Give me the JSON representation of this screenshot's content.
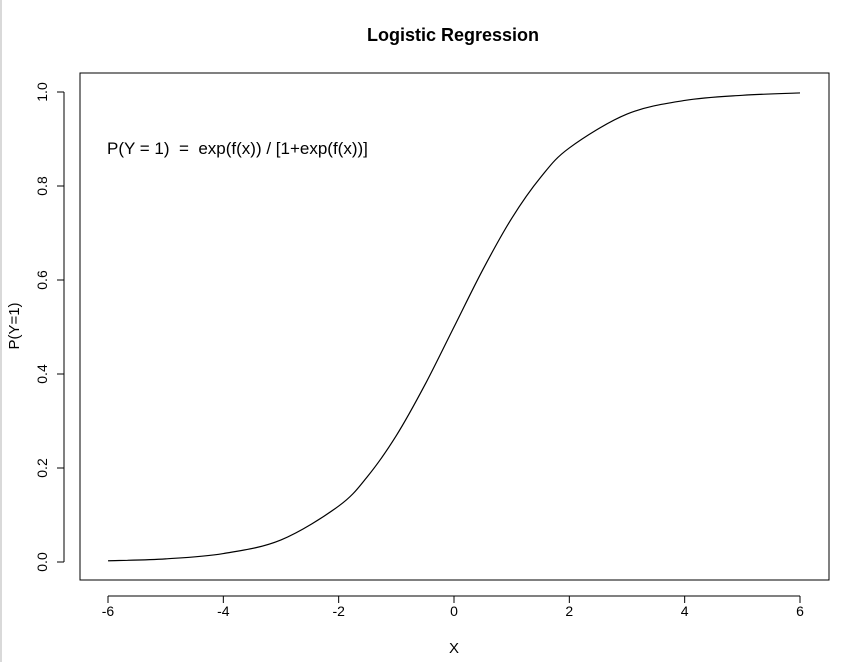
{
  "chart_data": {
    "type": "line",
    "title": "Logistic Regression",
    "xlabel": "X",
    "ylabel": "P(Y=1)",
    "xlim": [
      -6,
      6
    ],
    "ylim": [
      0,
      1
    ],
    "x_ticks": [
      -6,
      -4,
      -2,
      0,
      2,
      4,
      6
    ],
    "x_tick_labels": [
      "-6",
      "-4",
      "-2",
      "0",
      "2",
      "4",
      "6"
    ],
    "y_ticks": [
      0.0,
      0.2,
      0.4,
      0.6,
      0.8,
      1.0
    ],
    "y_tick_labels": [
      "0.0",
      "0.2",
      "0.4",
      "0.6",
      "0.8",
      "1.0"
    ],
    "grid": false,
    "annotation": "P(Y = 1)  =  exp(f(x)) / [1+exp(f(x))]",
    "series": [
      {
        "x": [
          -6,
          -5,
          -4,
          -3,
          -2,
          -1.5,
          -1,
          -0.5,
          0,
          0.5,
          1,
          1.5,
          2,
          3,
          4,
          5,
          6
        ],
        "y": [
          0.0025,
          0.0067,
          0.018,
          0.047,
          0.119,
          0.182,
          0.269,
          0.378,
          0.5,
          0.622,
          0.731,
          0.818,
          0.881,
          0.953,
          0.982,
          0.993,
          0.998
        ]
      }
    ]
  }
}
